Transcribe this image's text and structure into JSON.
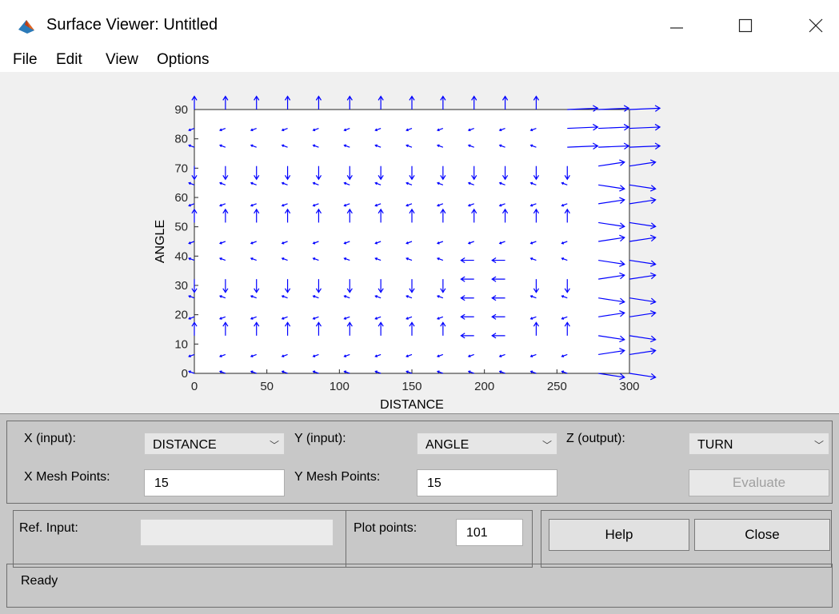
{
  "window": {
    "title": "Surface Viewer: Untitled",
    "minimize_glyph": "—",
    "maximize_glyph": "☐",
    "close_glyph": "✕"
  },
  "menu": [
    "File",
    "Edit",
    "View",
    "Options"
  ],
  "chart_data": {
    "type": "quiver",
    "xlabel": "DISTANCE",
    "ylabel": "ANGLE",
    "xlim": [
      0,
      300
    ],
    "ylim": [
      0,
      90
    ],
    "xticks": [
      0,
      50,
      100,
      150,
      200,
      250,
      300
    ],
    "yticks": [
      0,
      10,
      20,
      30,
      40,
      50,
      60,
      70,
      80,
      90
    ],
    "grid": false,
    "color": "#0000ff",
    "mesh_points": [
      15,
      15
    ]
  },
  "controls": {
    "x_input_label": "X (input):",
    "x_input_value": "DISTANCE",
    "y_input_label": "Y (input):",
    "y_input_value": "ANGLE",
    "z_output_label": "Z (output):",
    "z_output_value": "TURN",
    "x_mesh_label": "X Mesh Points:",
    "x_mesh_value": "15",
    "y_mesh_label": "Y Mesh Points:",
    "y_mesh_value": "15",
    "evaluate_label": "Evaluate",
    "ref_input_label": "Ref. Input:",
    "ref_input_value": "",
    "plot_points_label": "Plot points:",
    "plot_points_value": "101",
    "help_label": "Help",
    "close_label": "Close",
    "status": "Ready"
  }
}
